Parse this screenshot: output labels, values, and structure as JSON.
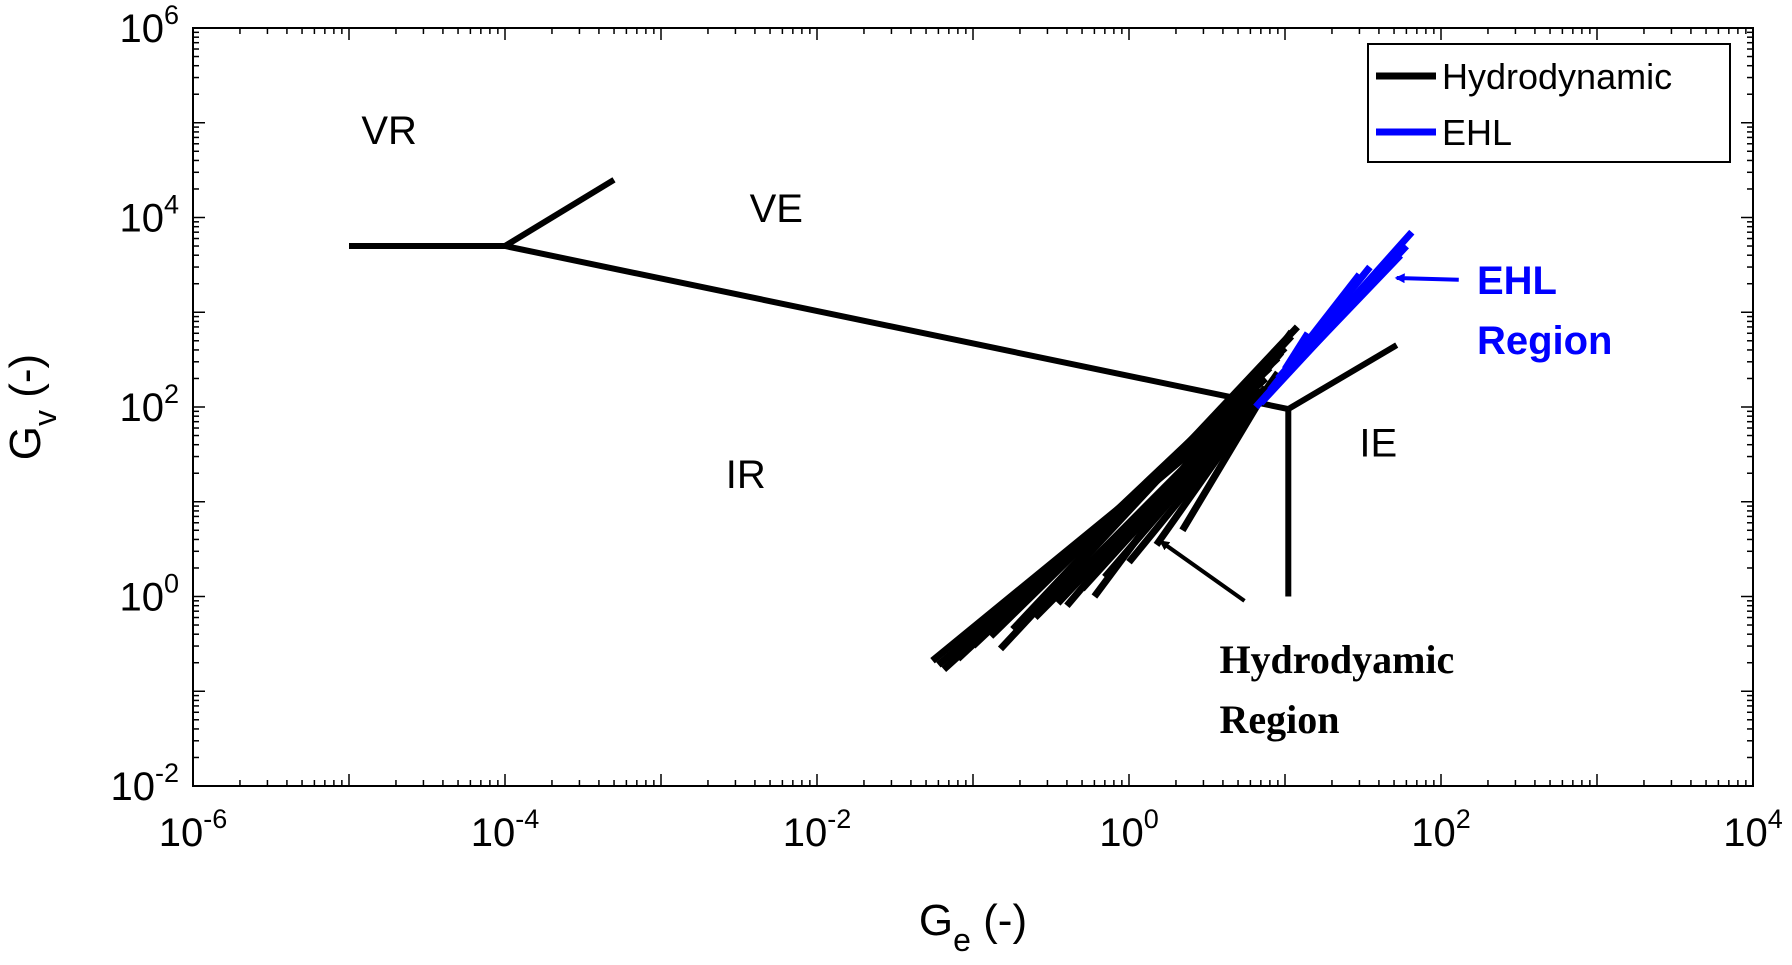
{
  "chart_data": {
    "type": "line",
    "title": "",
    "xlabel": {
      "main": "G",
      "sub": "e",
      "unit": " (-)"
    },
    "ylabel": {
      "main": "G",
      "sub": "v",
      "unit": " (-)"
    },
    "x_scale": "log",
    "y_scale": "log",
    "xlim": [
      1e-06,
      10000
    ],
    "ylim": [
      0.01,
      1000000
    ],
    "x_ticks": [
      {
        "value": 1e-06,
        "base": "10",
        "exp": "-6"
      },
      {
        "value": 0.0001,
        "base": "10",
        "exp": "-4"
      },
      {
        "value": 0.01,
        "base": "10",
        "exp": "-2"
      },
      {
        "value": 1,
        "base": "10",
        "exp": "0"
      },
      {
        "value": 100,
        "base": "10",
        "exp": "2"
      },
      {
        "value": 10000,
        "base": "10",
        "exp": "4"
      }
    ],
    "y_ticks": [
      {
        "value": 0.01,
        "base": "10",
        "exp": "-2"
      },
      {
        "value": 1,
        "base": "10",
        "exp": "0"
      },
      {
        "value": 100,
        "base": "10",
        "exp": "2"
      },
      {
        "value": 10000,
        "base": "10",
        "exp": "4"
      },
      {
        "value": 1000000,
        "base": "10",
        "exp": "6"
      }
    ],
    "grid": false,
    "legend": {
      "placement": "top-right",
      "entries": [
        {
          "name": "Hydrodynamic",
          "color": "#000000"
        },
        {
          "name": "EHL",
          "color": "#0000ff"
        }
      ]
    },
    "boundaries": [
      {
        "color": "#000000",
        "points": [
          [
            1e-05,
            5000
          ],
          [
            0.0001,
            5000
          ]
        ]
      },
      {
        "color": "#000000",
        "points": [
          [
            0.0001,
            5000
          ],
          [
            0.0005,
            25000
          ]
        ]
      },
      {
        "color": "#000000",
        "points": [
          [
            0.0001,
            5000
          ],
          [
            10.5,
            95
          ]
        ]
      },
      {
        "color": "#000000",
        "points": [
          [
            10.5,
            95
          ],
          [
            52,
            450
          ]
        ]
      },
      {
        "color": "#000000",
        "points": [
          [
            10.5,
            95
          ],
          [
            10.5,
            1
          ]
        ]
      }
    ],
    "series": [
      {
        "name": "Hydrodynamic",
        "color": "#000000",
        "lines": [
          [
            [
              0.055,
              0.21
            ],
            [
              6.5,
              130
            ]
          ],
          [
            [
              0.06,
              0.19
            ],
            [
              7.0,
              140
            ]
          ],
          [
            [
              0.065,
              0.17
            ],
            [
              7.5,
              200
            ]
          ],
          [
            [
              0.08,
              0.22
            ],
            [
              8.0,
              260
            ]
          ],
          [
            [
              0.1,
              0.3
            ],
            [
              9.0,
              330
            ]
          ],
          [
            [
              0.13,
              0.38
            ],
            [
              10.0,
              420
            ]
          ],
          [
            [
              0.15,
              0.28
            ],
            [
              11.0,
              560
            ]
          ],
          [
            [
              0.18,
              0.45
            ],
            [
              12.0,
              700
            ]
          ],
          [
            [
              0.25,
              0.6
            ],
            [
              7.0,
              150
            ]
          ],
          [
            [
              0.35,
              0.85
            ],
            [
              6.0,
              120
            ]
          ],
          [
            [
              0.5,
              1.2
            ],
            [
              7.5,
              160
            ]
          ],
          [
            [
              0.7,
              1.6
            ],
            [
              8.5,
              190
            ]
          ],
          [
            [
              1.0,
              2.3
            ],
            [
              6.8,
              110
            ]
          ],
          [
            [
              1.5,
              3.5
            ],
            [
              9.0,
              230
            ]
          ],
          [
            [
              2.2,
              5.0
            ],
            [
              7.2,
              130
            ]
          ],
          [
            [
              0.6,
              1.0
            ],
            [
              11.0,
              620
            ]
          ],
          [
            [
              0.4,
              0.8
            ],
            [
              9.5,
              380
            ]
          ]
        ]
      },
      {
        "name": "EHL",
        "color": "#0000ff",
        "lines": [
          [
            [
              6.5,
              100
            ],
            [
              65,
              7000
            ]
          ],
          [
            [
              7.0,
              110
            ],
            [
              60,
              5000
            ]
          ],
          [
            [
              7.5,
              130
            ],
            [
              55,
              4000
            ]
          ],
          [
            [
              8.0,
              150
            ],
            [
              35,
              3000
            ]
          ],
          [
            [
              8.5,
              170
            ],
            [
              25,
              1500
            ]
          ],
          [
            [
              9.0,
              200
            ],
            [
              20,
              900
            ]
          ],
          [
            [
              10.0,
              250
            ],
            [
              14,
              600
            ]
          ],
          [
            [
              11.0,
              300
            ],
            [
              30,
              2500
            ]
          ]
        ]
      }
    ],
    "region_labels": [
      {
        "text": "VR",
        "x": 1.2e-05,
        "y": 60000
      },
      {
        "text": "VE",
        "x": 0.0037,
        "y": 9000
      },
      {
        "text": "IR",
        "x": 0.0026,
        "y": 14
      },
      {
        "text": "IE",
        "x": 30,
        "y": 30
      }
    ],
    "annotations": [
      {
        "lines": [
          "Hydrodyamic",
          "Region"
        ],
        "color": "#000000",
        "text_anchor": [
          3.8,
          0.155
        ],
        "arrow_from": [
          5.5,
          0.9
        ],
        "arrow_to": [
          1.6,
          3.8
        ]
      },
      {
        "lines": [
          "EHL",
          "Region"
        ],
        "color": "#0000ff",
        "text_anchor": [
          170,
          1550
        ],
        "arrow_from": [
          130,
          2200
        ],
        "arrow_to": [
          52,
          2300
        ]
      }
    ]
  }
}
